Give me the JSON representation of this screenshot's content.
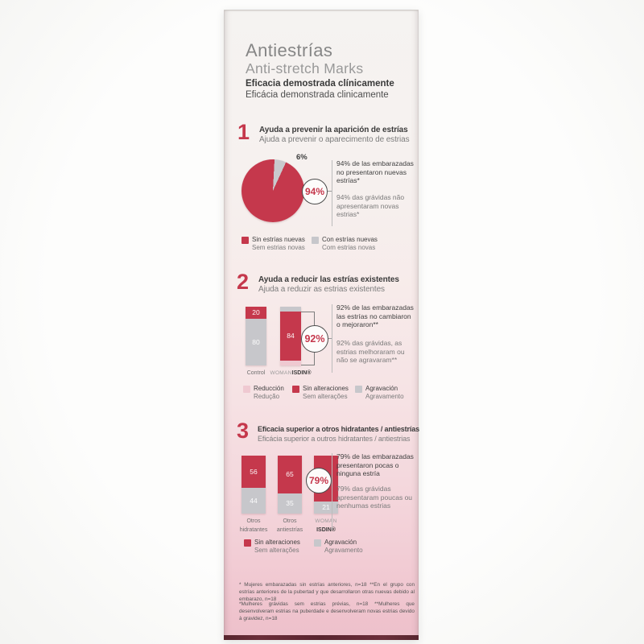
{
  "header": {
    "title_es": "Antiestrías",
    "title_en": "Anti-stretch Marks",
    "claim_es": "Eficacia demostrada clínicamente",
    "claim_pt": "Eficácia demonstrada clinicamente"
  },
  "colors": {
    "red": "#c5384c",
    "gray": "#c7c7cb",
    "pink": "#efc9d1",
    "pie_gray": "#c9c9cd"
  },
  "sections": [
    {
      "number": "1",
      "heading_es": "Ayuda a prevenir la aparición de estrías",
      "heading_pt": "Ajuda a prevenir o aparecimento de estrias",
      "slice_label": "6%",
      "badge": "94%",
      "callout_es": "94% de las embarazadas no presentaron nuevas estrías*",
      "callout_pt": "94% das grávidas não apresentaram novas estrias*",
      "legend": [
        {
          "es": "Sin estrías nuevas",
          "pt": "Sem estrias novas",
          "color": "red"
        },
        {
          "es": "Con estrías nuevas",
          "pt": "Com estrias novas",
          "color": "gray"
        }
      ]
    },
    {
      "number": "2",
      "heading_es": "Ayuda a reducir las estrías existentes",
      "heading_pt": "Ajuda a reduzir as estrias existentes",
      "badge": "92%",
      "callout_es": "92% de las embarazadas las estrías no cambiaron o mejoraron**",
      "callout_pt": "92% das grávidas, as estrias melhoraram ou não se agravaram**",
      "bars": [
        {
          "cap1": "Control",
          "segments": [
            {
              "value": 20,
              "color": "red",
              "label": "20"
            },
            {
              "value": 80,
              "color": "gray",
              "label": "80"
            }
          ]
        },
        {
          "cap1": "WOMAN",
          "cap1_muted": true,
          "cap1b": "ISDIN®",
          "segments": [
            {
              "value": 8,
              "color": "gray",
              "label": ""
            },
            {
              "value": 84,
              "color": "red",
              "label": "84"
            },
            {
              "value": 8,
              "color": "pink",
              "label": ""
            }
          ]
        }
      ],
      "legend": [
        {
          "es": "Reducción",
          "pt": "Redução",
          "color": "pink"
        },
        {
          "es": "Sin alteraciones",
          "pt": "Sem alterações",
          "color": "red"
        },
        {
          "es": "Agravación",
          "pt": "Agravamento",
          "color": "gray"
        }
      ]
    },
    {
      "number": "3",
      "heading_es": "Eficacia superior a otros hidratantes / antiestrías",
      "heading_pt": "Eficácia superior a outros hidratantes / antiestrias",
      "badge": "79%",
      "callout_es": "79% de las embarazadas presentaron pocas o ninguna estría",
      "callout_pt": "79% das grávidas apresentaram poucas ou nenhumas estrias",
      "bars": [
        {
          "cap1": "Otros",
          "cap2": "hidratantes",
          "segments": [
            {
              "value": 56,
              "color": "red",
              "label": "56"
            },
            {
              "value": 44,
              "color": "gray",
              "label": "44"
            }
          ]
        },
        {
          "cap1": "Otros",
          "cap2": "antiestrías",
          "segments": [
            {
              "value": 65,
              "color": "red",
              "label": "65"
            },
            {
              "value": 35,
              "color": "gray",
              "label": "35"
            }
          ]
        },
        {
          "cap1": "WOMAN",
          "cap1_muted": true,
          "cap2b": "ISDIN®",
          "segments": [
            {
              "value": 79,
              "color": "red",
              "label": ""
            },
            {
              "value": 21,
              "color": "gray",
              "label": "21"
            }
          ]
        }
      ],
      "legend": [
        {
          "es": "Sin alteraciones",
          "pt": "Sem alterações",
          "color": "red"
        },
        {
          "es": "Agravación",
          "pt": "Agravamento",
          "color": "gray"
        }
      ]
    }
  ],
  "footnotes": {
    "es": "* Mujeres embarazadas sin estrías anteriores, n=18 **En el grupo con estrías anteriores de la pubertad y que desarrollaron otras nuevas debido al embarazo, n=18",
    "pt": "*Mulheres grávidas sem estrias prévias, n=18 **Mulheres que desenvolveram estrias na puberdade e desenvolveram novas estrias devido à gravidez, n=18"
  },
  "chart_data": [
    {
      "type": "pie",
      "title": "Ayuda a prevenir la aparición de estrías",
      "labels": [
        "Sin estrías nuevas / Sem estrias novas",
        "Con estrías nuevas / Com estrias novas"
      ],
      "values": [
        94,
        6
      ],
      "colors": [
        "#c5384c",
        "#c9c9cd"
      ],
      "annotation": "94%",
      "slice_start_deg": 3,
      "legend_position": "bottom"
    },
    {
      "type": "bar",
      "stacked": true,
      "title": "Ayuda a reducir las estrías existentes",
      "categories": [
        "Control",
        "WOMAN ISDIN®"
      ],
      "series": [
        {
          "name": "Reducción / Redução",
          "color": "#efc9d1",
          "values": [
            0,
            8
          ]
        },
        {
          "name": "Sin alteraciones / Sem alterações",
          "color": "#c5384c",
          "values": [
            20,
            84
          ]
        },
        {
          "name": "Agravación / Agravamento",
          "color": "#c7c7cb",
          "values": [
            80,
            8
          ]
        }
      ],
      "annotation": "92%",
      "ylim": [
        0,
        100
      ],
      "legend_position": "bottom"
    },
    {
      "type": "bar",
      "stacked": true,
      "title": "Eficacia superior a otros hidratantes / antiestrías",
      "categories": [
        "Otros hidratantes",
        "Otros antiestrías",
        "WOMAN ISDIN®"
      ],
      "series": [
        {
          "name": "Sin alteraciones / Sem alterações",
          "color": "#c5384c",
          "values": [
            56,
            65,
            79
          ]
        },
        {
          "name": "Agravación / Agravamento",
          "color": "#c7c7cb",
          "values": [
            44,
            35,
            21
          ]
        }
      ],
      "annotation": "79%",
      "ylim": [
        0,
        100
      ],
      "legend_position": "bottom"
    }
  ]
}
